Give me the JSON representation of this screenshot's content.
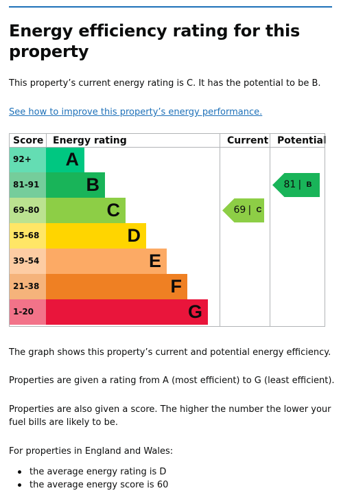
{
  "page": {
    "title": "Energy efficiency rating for this property",
    "intro": "This property’s current energy rating is C. It has the potential to be B.",
    "improve_link": "See how to improve this property’s energy performance.",
    "para_graph": "The graph shows this property’s current and potential energy efficiency.",
    "para_rating": "Properties are given a rating from A (most efficient) to G (least efficient).",
    "para_score": "Properties are also given a score. The higher the number the lower your fuel bills are likely to be.",
    "para_region": "For properties in England and Wales:",
    "bullets": [
      "the average energy rating is D",
      "the average energy score is 60"
    ]
  },
  "chart_data": {
    "type": "table",
    "headers": {
      "score": "Score",
      "rating": "Energy rating",
      "current": "Current",
      "potential": "Potential"
    },
    "bands": [
      {
        "range": "92+",
        "letter": "A",
        "color": "#00c781",
        "score_bg": "#64ddb3",
        "text_color": "#0b0c0c"
      },
      {
        "range": "81-91",
        "letter": "B",
        "color": "#19b459",
        "score_bg": "#75cd9b",
        "text_color": "#0b0c0c"
      },
      {
        "range": "69-80",
        "letter": "C",
        "color": "#8dce46",
        "score_bg": "#bbe290",
        "text_color": "#0b0c0c"
      },
      {
        "range": "55-68",
        "letter": "D",
        "color": "#ffd500",
        "score_bg": "#ffe666",
        "text_color": "#0b0c0c"
      },
      {
        "range": "39-54",
        "letter": "E",
        "color": "#fcaa65",
        "score_bg": "#fdcca3",
        "text_color": "#0b0c0c"
      },
      {
        "range": "21-38",
        "letter": "F",
        "color": "#ef8023",
        "score_bg": "#f5b37b",
        "text_color": "#0b0c0c"
      },
      {
        "range": "1-20",
        "letter": "G",
        "color": "#e9153b",
        "score_bg": "#f27389",
        "text_color": "#0b0c0c"
      }
    ],
    "current": {
      "score": "69",
      "letter": "C",
      "color": "#8dce46"
    },
    "potential": {
      "score": "81",
      "letter": "B",
      "color": "#19b459"
    }
  }
}
